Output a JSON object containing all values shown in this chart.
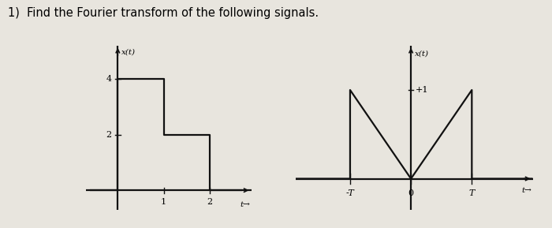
{
  "title_text": "1)  Find the Fourier transform of the following signals.",
  "title_fontsize": 10.5,
  "bg_color": "#e8e5de",
  "left_graph": {
    "ylabel": "x(t)",
    "xlabel_arrow": "t→",
    "yticks": [
      2,
      4
    ],
    "xticks": [
      1,
      2
    ],
    "step_x": [
      -0.6,
      0,
      0,
      1,
      1,
      2,
      2,
      2.7
    ],
    "step_y": [
      0,
      0,
      4,
      4,
      2,
      2,
      0,
      0
    ],
    "xlim": [
      -0.7,
      2.9
    ],
    "ylim": [
      -0.7,
      5.2
    ],
    "line_color": "#111111",
    "axis_color": "#111111",
    "lw": 1.6
  },
  "right_graph": {
    "ylabel": "x(t)",
    "xlabel_arrow": "t→",
    "xtick_neg": "-T",
    "xtick_zero": "0",
    "xtick_pos": "T",
    "T": 1.0,
    "peak_height": 1.0,
    "xlim": [
      -1.9,
      2.0
    ],
    "ylim": [
      -0.35,
      1.5
    ],
    "line_color": "#111111",
    "axis_color": "#111111",
    "lw": 1.6
  }
}
